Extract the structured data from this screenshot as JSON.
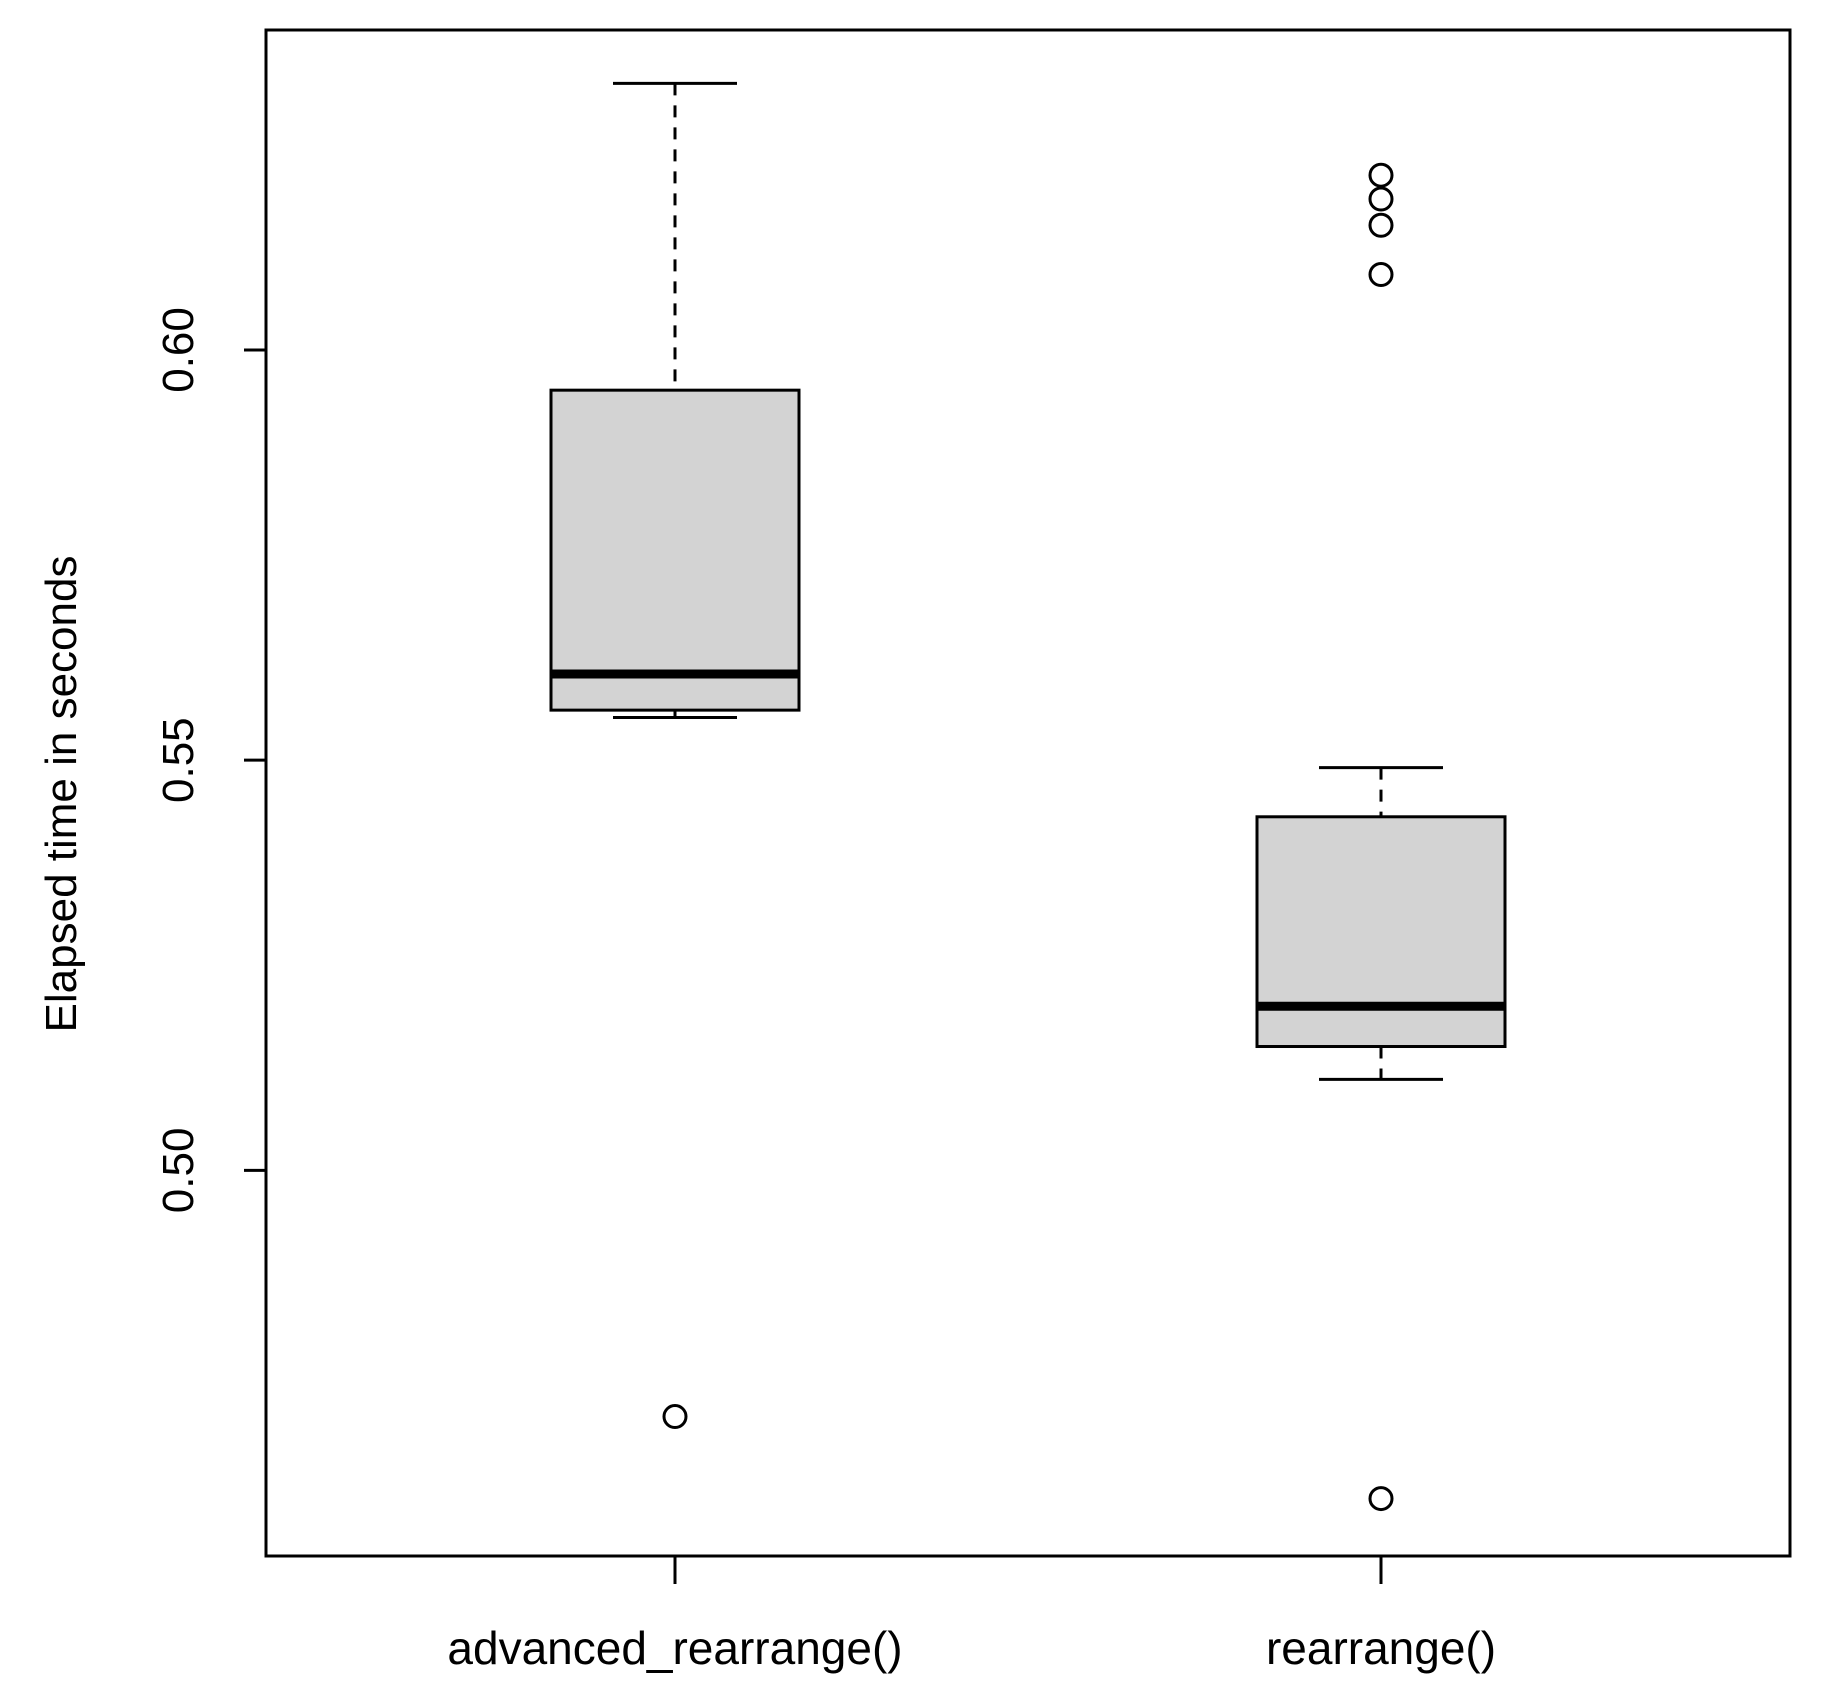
{
  "chart_data": {
    "type": "boxplot",
    "title": "",
    "xlabel": "",
    "ylabel": "Elapsed time in seconds",
    "ylim": [
      0.453,
      0.639
    ],
    "yticks": [
      0.5,
      0.55,
      0.6
    ],
    "ytick_labels": [
      "0.50",
      "0.55",
      "0.60"
    ],
    "grid": false,
    "legend": "none",
    "box_fill": "#d3d3d3",
    "line_color": "#000000",
    "categories": [
      "advanced_rearrange()",
      "rearrange()"
    ],
    "boxes": [
      {
        "label": "advanced_rearrange()",
        "whisker_low": 0.5552,
        "q1": 0.5561,
        "median": 0.5605,
        "q3": 0.5951,
        "whisker_high": 0.6325,
        "outliers": [
          0.47
        ]
      },
      {
        "label": "rearrange()",
        "whisker_low": 0.5111,
        "q1": 0.5151,
        "median": 0.52,
        "q3": 0.5431,
        "whisker_high": 0.5491,
        "outliers": [
          0.6213,
          0.6184,
          0.6152,
          0.6092,
          0.46
        ]
      }
    ]
  }
}
